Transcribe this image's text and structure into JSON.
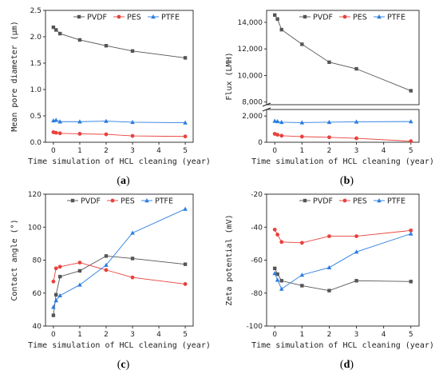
{
  "series_styles": {
    "PVDF": {
      "color": "#555555",
      "marker": "square"
    },
    "PES": {
      "color": "#e8413c",
      "marker": "circle"
    },
    "PTFE": {
      "color": "#2a7de1",
      "marker": "triangle"
    }
  },
  "chart_data": [
    {
      "type": "line",
      "panel_open": "(",
      "panel_letter": "a",
      "panel_close": ")",
      "xlabel": "Time simulation of HCL cleaning (year)",
      "ylabel": "Mean pore diameter (μm)",
      "xlim": [
        -0.3,
        5.3
      ],
      "ylim": [
        0,
        2.5
      ],
      "xticks": [
        0,
        1,
        2,
        3,
        4,
        5
      ],
      "yticks": [
        0.0,
        0.5,
        1.0,
        1.5,
        2.0,
        2.5
      ],
      "ytick_labels": [
        "0.0",
        "0.5",
        "1.0",
        "1.5",
        "2.0",
        "2.5"
      ],
      "legend": "top-right",
      "series": [
        {
          "name": "PVDF",
          "x": [
            0,
            0.1,
            0.25,
            1,
            2,
            3,
            5
          ],
          "y": [
            2.18,
            2.13,
            2.06,
            1.94,
            1.83,
            1.73,
            1.6
          ]
        },
        {
          "name": "PES",
          "x": [
            0,
            0.1,
            0.25,
            1,
            2,
            3,
            5
          ],
          "y": [
            0.19,
            0.18,
            0.17,
            0.16,
            0.15,
            0.12,
            0.11
          ]
        },
        {
          "name": "PTFE",
          "x": [
            0,
            0.1,
            0.25,
            1,
            2,
            3,
            5
          ],
          "y": [
            0.41,
            0.42,
            0.39,
            0.39,
            0.4,
            0.38,
            0.37
          ]
        }
      ]
    },
    {
      "type": "line",
      "panel_open": "(",
      "panel_letter": "b",
      "panel_close": ")",
      "xlabel": "Time simulation of HCL cleaning (year)",
      "ylabel": "Flux (LMH)",
      "xlim": [
        -0.3,
        5.3
      ],
      "axis_break": true,
      "ylim_lower": [
        0,
        2500
      ],
      "ylim_upper": [
        7800,
        14900
      ],
      "yticks_lower": [
        0,
        2000
      ],
      "ytick_labels_lower": [
        "0",
        "2,000"
      ],
      "yticks_upper": [
        8000,
        10000,
        12000,
        14000
      ],
      "ytick_labels_upper": [
        "8,000",
        "10,000",
        "12,000",
        "14,000"
      ],
      "xticks": [
        0,
        1,
        2,
        3,
        4,
        5
      ],
      "legend": "top-right",
      "series": [
        {
          "name": "PVDF",
          "x": [
            0,
            0.1,
            0.25,
            1,
            2,
            3,
            5
          ],
          "y": [
            14550,
            14250,
            13450,
            12350,
            11000,
            10500,
            8850
          ]
        },
        {
          "name": "PES",
          "x": [
            0,
            0.1,
            0.25,
            1,
            2,
            3,
            5
          ],
          "y": [
            640,
            570,
            500,
            430,
            380,
            300,
            80
          ]
        },
        {
          "name": "PTFE",
          "x": [
            0,
            0.1,
            0.25,
            1,
            2,
            3,
            5
          ],
          "y": [
            1620,
            1590,
            1530,
            1500,
            1530,
            1560,
            1580
          ]
        }
      ]
    },
    {
      "type": "line",
      "panel_open": "(",
      "panel_letter": "c",
      "panel_close": ")",
      "xlabel": "Time simulation of HCL cleaning (year)",
      "ylabel": "Contact angle (°)",
      "xlim": [
        -0.3,
        5.3
      ],
      "ylim": [
        40,
        120
      ],
      "xticks": [
        0,
        1,
        2,
        3,
        4,
        5
      ],
      "yticks": [
        40,
        60,
        80,
        100,
        120
      ],
      "ytick_labels": [
        "40",
        "60",
        "80",
        "100",
        "120"
      ],
      "legend": "top-left",
      "series": [
        {
          "name": "PVDF",
          "x": [
            0,
            0.1,
            0.25,
            1,
            2,
            3,
            5
          ],
          "y": [
            46.5,
            59,
            70,
            73.5,
            82.5,
            81,
            77.5
          ]
        },
        {
          "name": "PES",
          "x": [
            0,
            0.1,
            0.25,
            1,
            2,
            3,
            5
          ],
          "y": [
            67,
            75,
            76,
            78.5,
            74,
            69.5,
            65.5
          ]
        },
        {
          "name": "PTFE",
          "x": [
            0,
            0.1,
            0.25,
            1,
            2,
            3,
            5
          ],
          "y": [
            51.5,
            55.5,
            58.5,
            65,
            77,
            96.5,
            111
          ]
        }
      ]
    },
    {
      "type": "line",
      "panel_open": "(",
      "panel_letter": "d",
      "panel_close": ")",
      "xlabel": "Time simulation of HCL cleaning (year)",
      "ylabel": "Zeta potential (mV)",
      "xlim": [
        -0.3,
        5.3
      ],
      "ylim": [
        -100,
        -20
      ],
      "xticks": [
        0,
        1,
        2,
        3,
        4,
        5
      ],
      "yticks": [
        -100,
        -80,
        -60,
        -40,
        -20
      ],
      "ytick_labels": [
        "-100",
        "-80",
        "-60",
        "-40",
        "-20"
      ],
      "legend": "top-right",
      "series": [
        {
          "name": "PVDF",
          "x": [
            0,
            0.1,
            0.25,
            1,
            2,
            3,
            5
          ],
          "y": [
            -65,
            -68.5,
            -72.5,
            -75.5,
            -78.5,
            -72.5,
            -73
          ]
        },
        {
          "name": "PES",
          "x": [
            0,
            0.1,
            0.25,
            1,
            2,
            3,
            5
          ],
          "y": [
            -41.5,
            -44.5,
            -49,
            -49.5,
            -45.5,
            -45.5,
            -42
          ]
        },
        {
          "name": "PTFE",
          "x": [
            0,
            0.1,
            0.25,
            1,
            2,
            3,
            5
          ],
          "y": [
            -68,
            -72,
            -77.5,
            -69,
            -64.5,
            -55,
            -44
          ]
        }
      ]
    }
  ]
}
